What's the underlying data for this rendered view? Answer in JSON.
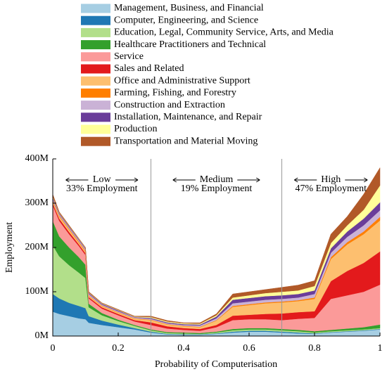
{
  "chart_data": {
    "type": "stacked-area",
    "x_label": "Probability of Computerisation",
    "y_label": "Employment",
    "x": [
      0,
      0.02,
      0.05,
      0.08,
      0.1,
      0.11,
      0.15,
      0.2,
      0.25,
      0.3,
      0.35,
      0.4,
      0.45,
      0.5,
      0.55,
      0.6,
      0.65,
      0.7,
      0.75,
      0.8,
      0.85,
      0.9,
      0.95,
      1
    ],
    "xlim": [
      0,
      1
    ],
    "xticks": [
      0,
      0.2,
      0.4,
      0.6,
      0.8,
      1
    ],
    "ylim": [
      0,
      400
    ],
    "yticks": [
      {
        "value": 0,
        "label": "0M"
      },
      {
        "value": 100,
        "label": "100M"
      },
      {
        "value": 200,
        "label": "200M"
      },
      {
        "value": 300,
        "label": "300M"
      },
      {
        "value": 400,
        "label": "400M"
      }
    ],
    "dividers": [
      0.3,
      0.7
    ],
    "annotations": [
      {
        "label": "Low",
        "note": "33% Employment"
      },
      {
        "label": "Medium",
        "note": "19% Employment"
      },
      {
        "label": "High",
        "note": "47% Employment"
      }
    ],
    "series": [
      {
        "name": "Management, Business, and Financial",
        "color": "#a6cee3",
        "values": [
          55,
          50,
          45,
          40,
          38,
          30,
          25,
          20,
          15,
          8,
          4,
          3,
          3,
          5,
          8,
          10,
          10,
          8,
          6,
          5,
          8,
          10,
          12,
          15
        ]
      },
      {
        "name": "Computer, Engineering, and Science",
        "color": "#1f78b4",
        "values": [
          40,
          35,
          30,
          28,
          25,
          15,
          10,
          6,
          3,
          2,
          1,
          1,
          1,
          1,
          2,
          2,
          2,
          2,
          2,
          1,
          1,
          1,
          1,
          1
        ]
      },
      {
        "name": "Education, Legal, Community Service, Arts, and Media",
        "color": "#b2df8a",
        "values": [
          110,
          95,
          85,
          75,
          68,
          20,
          12,
          8,
          5,
          3,
          2,
          2,
          1,
          2,
          3,
          3,
          3,
          3,
          3,
          2,
          2,
          2,
          2,
          2
        ]
      },
      {
        "name": "Healthcare Practitioners and Technical",
        "color": "#33a02c",
        "values": [
          55,
          45,
          40,
          35,
          30,
          8,
          5,
          3,
          2,
          2,
          2,
          2,
          2,
          2,
          3,
          3,
          3,
          3,
          3,
          3,
          3,
          4,
          5,
          8
        ]
      },
      {
        "name": "Service",
        "color": "#fb9a99",
        "values": [
          35,
          35,
          30,
          25,
          22,
          12,
          10,
          10,
          8,
          10,
          8,
          6,
          5,
          10,
          20,
          20,
          20,
          20,
          25,
          30,
          70,
          75,
          80,
          90
        ]
      },
      {
        "name": "Sales and Related",
        "color": "#e31a1c",
        "values": [
          5,
          5,
          5,
          4,
          4,
          3,
          3,
          3,
          3,
          6,
          5,
          4,
          4,
          5,
          10,
          10,
          12,
          15,
          15,
          15,
          40,
          55,
          65,
          75
        ]
      },
      {
        "name": "Office and Administrative Support",
        "color": "#fdbf6f",
        "values": [
          5,
          5,
          5,
          4,
          4,
          3,
          3,
          3,
          3,
          5,
          4,
          4,
          4,
          10,
          20,
          22,
          24,
          25,
          25,
          28,
          50,
          60,
          65,
          70
        ]
      },
      {
        "name": "Farming, Fishing, and Forestry",
        "color": "#ff7f00",
        "values": [
          2,
          2,
          2,
          2,
          2,
          1,
          1,
          1,
          1,
          1,
          1,
          1,
          1,
          1,
          2,
          2,
          2,
          2,
          2,
          3,
          4,
          5,
          6,
          8
        ]
      },
      {
        "name": "Construction and Extraction",
        "color": "#cab2d6",
        "values": [
          3,
          3,
          3,
          3,
          3,
          3,
          2,
          2,
          2,
          2,
          2,
          2,
          3,
          4,
          6,
          6,
          6,
          6,
          6,
          8,
          10,
          12,
          14,
          15
        ]
      },
      {
        "name": "Installation, Maintenance, and Repair",
        "color": "#6a3d9a",
        "values": [
          3,
          2,
          2,
          2,
          2,
          2,
          2,
          2,
          1,
          2,
          2,
          2,
          2,
          4,
          8,
          8,
          8,
          8,
          8,
          8,
          10,
          12,
          15,
          18
        ]
      },
      {
        "name": "Production",
        "color": "#ffff99",
        "values": [
          2,
          1,
          1,
          1,
          1,
          1,
          1,
          1,
          1,
          2,
          2,
          2,
          2,
          3,
          5,
          6,
          7,
          8,
          8,
          10,
          12,
          14,
          20,
          38
        ]
      },
      {
        "name": "Transportation and Material Moving",
        "color": "#b15928",
        "values": [
          5,
          2,
          2,
          1,
          1,
          2,
          1,
          1,
          1,
          2,
          2,
          1,
          2,
          3,
          8,
          8,
          8,
          10,
          12,
          12,
          20,
          20,
          35,
          40
        ]
      }
    ]
  }
}
